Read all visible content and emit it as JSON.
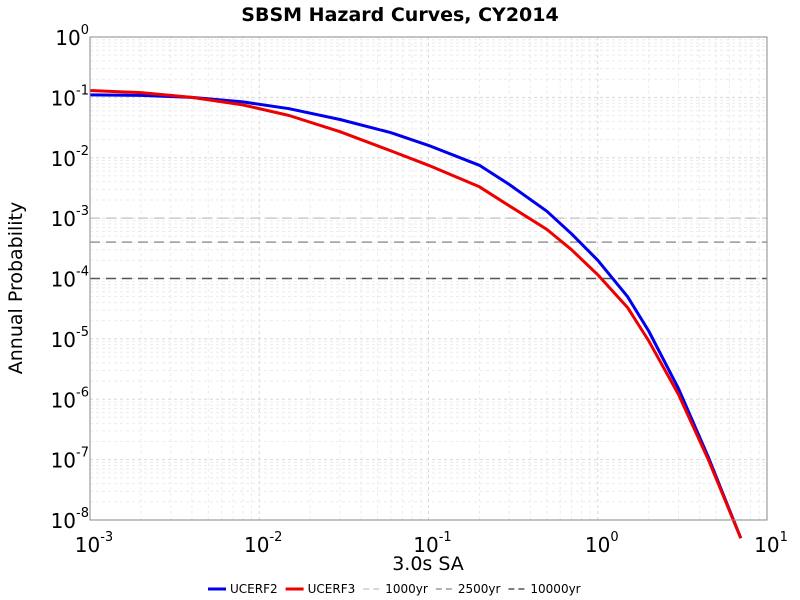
{
  "chart_data": {
    "type": "line",
    "title": "SBSM Hazard Curves, CY2014",
    "xlabel": "3.0s SA",
    "ylabel": "Annual Probability",
    "x_scale": "log",
    "y_scale": "log",
    "xlim": [
      0.001,
      10
    ],
    "ylim": [
      1e-08,
      1
    ],
    "x_ticks": [
      {
        "base": "10",
        "exp": "-3",
        "value": 0.001
      },
      {
        "base": "10",
        "exp": "-2",
        "value": 0.01
      },
      {
        "base": "10",
        "exp": "-1",
        "value": 0.1
      },
      {
        "base": "10",
        "exp": "0",
        "value": 1
      },
      {
        "base": "10",
        "exp": "1",
        "value": 10
      }
    ],
    "y_ticks": [
      {
        "base": "10",
        "exp": "0",
        "value": 1
      },
      {
        "base": "10",
        "exp": "-1",
        "value": 0.1
      },
      {
        "base": "10",
        "exp": "-2",
        "value": 0.01
      },
      {
        "base": "10",
        "exp": "-3",
        "value": 0.001
      },
      {
        "base": "10",
        "exp": "-4",
        "value": 0.0001
      },
      {
        "base": "10",
        "exp": "-5",
        "value": 1e-05
      },
      {
        "base": "10",
        "exp": "-6",
        "value": 1e-06
      },
      {
        "base": "10",
        "exp": "-7",
        "value": 1e-07
      },
      {
        "base": "10",
        "exp": "-8",
        "value": 1e-08
      }
    ],
    "grid": true,
    "legend_position": "bottom",
    "series": [
      {
        "name": "UCERF2",
        "color": "#0000ee",
        "points": [
          [
            0.001,
            0.11
          ],
          [
            0.002,
            0.108
          ],
          [
            0.004,
            0.1
          ],
          [
            0.008,
            0.084
          ],
          [
            0.015,
            0.065
          ],
          [
            0.03,
            0.043
          ],
          [
            0.06,
            0.026
          ],
          [
            0.1,
            0.016
          ],
          [
            0.2,
            0.0075
          ],
          [
            0.3,
            0.0036
          ],
          [
            0.5,
            0.0013
          ],
          [
            0.7,
            0.00055
          ],
          [
            1.0,
            0.0002
          ],
          [
            1.5,
            5e-05
          ],
          [
            2.0,
            1.35e-05
          ],
          [
            3.0,
            1.5e-06
          ],
          [
            4.5,
            1.1e-07
          ],
          [
            7.0,
            5e-09
          ]
        ]
      },
      {
        "name": "UCERF3",
        "color": "#ee0000",
        "points": [
          [
            0.001,
            0.13
          ],
          [
            0.002,
            0.12
          ],
          [
            0.004,
            0.1
          ],
          [
            0.008,
            0.075
          ],
          [
            0.015,
            0.05
          ],
          [
            0.03,
            0.027
          ],
          [
            0.06,
            0.013
          ],
          [
            0.1,
            0.0075
          ],
          [
            0.2,
            0.0033
          ],
          [
            0.3,
            0.0016
          ],
          [
            0.5,
            0.00065
          ],
          [
            0.7,
            0.0003
          ],
          [
            1.0,
            0.000115
          ],
          [
            1.5,
            3.3e-05
          ],
          [
            2.0,
            9.3e-06
          ],
          [
            3.0,
            1.2e-06
          ],
          [
            4.5,
            1e-07
          ],
          [
            7.0,
            5e-09
          ]
        ]
      }
    ],
    "reference_lines": [
      {
        "name": "1000yr",
        "value": 0.001,
        "color": "#cccccc"
      },
      {
        "name": "2500yr",
        "value": 0.0004,
        "color": "#999999"
      },
      {
        "name": "10000yr",
        "value": 0.0001,
        "color": "#555555"
      }
    ]
  }
}
